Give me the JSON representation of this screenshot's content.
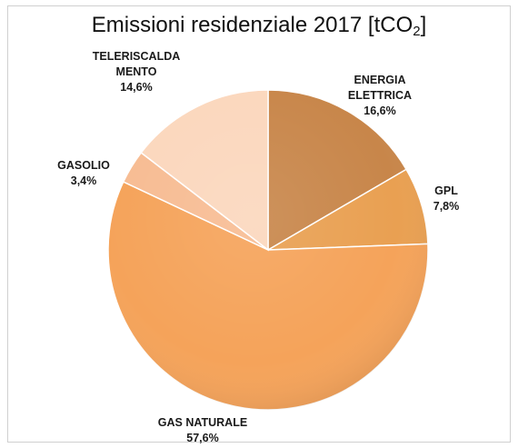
{
  "chart_data": {
    "type": "pie",
    "title_main": "Emissioni residenziale 2017 [tCO",
    "title_sub": "2",
    "title_end": "]",
    "slices": [
      {
        "label_lines": [
          "ENERGIA",
          "ELETTRICA"
        ],
        "value": 16.6,
        "value_label": "16,6%",
        "color": "#c8864a"
      },
      {
        "label_lines": [
          "GPL"
        ],
        "value": 7.8,
        "value_label": "7,8%",
        "color": "#e9a052"
      },
      {
        "label_lines": [
          "GAS NATURALE"
        ],
        "value": 57.6,
        "value_label": "57,6%",
        "color": "#f5a35a"
      },
      {
        "label_lines": [
          "GASOLIO"
        ],
        "value": 3.4,
        "value_label": "3,4%",
        "color": "#f7bc93"
      },
      {
        "label_lines": [
          "TELERISCALDA",
          "MENTO"
        ],
        "value": 14.6,
        "value_label": "14,6%",
        "color": "#fbd7bd"
      }
    ],
    "start": "12 o'clock",
    "direction": "clockwise",
    "legend": "none"
  }
}
